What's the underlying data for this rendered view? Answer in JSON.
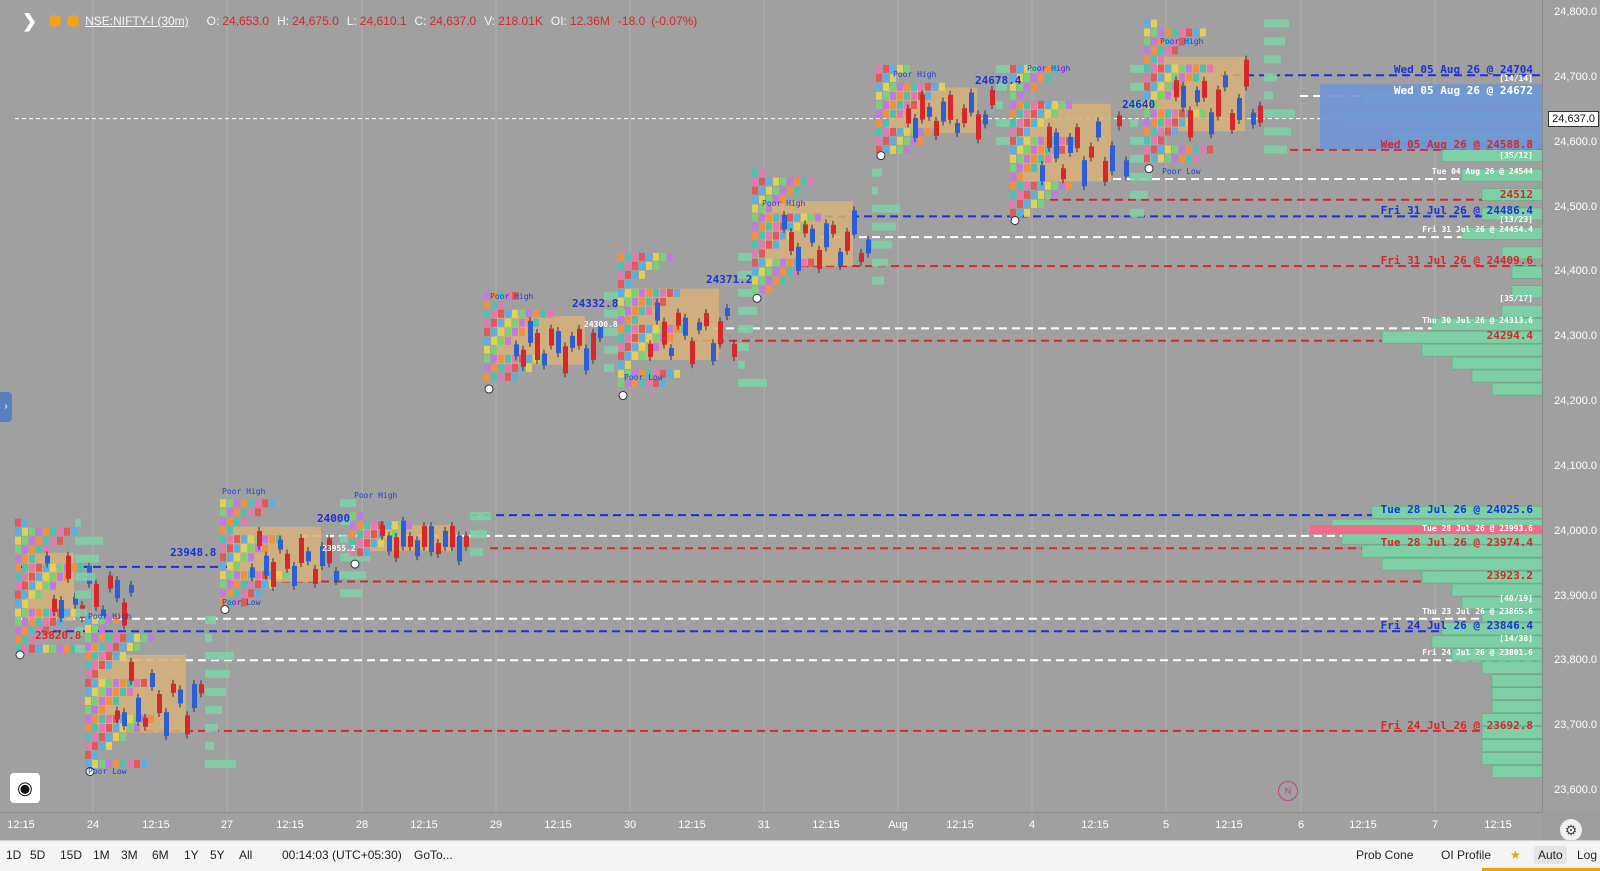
{
  "legend": {
    "symbol": "NSE:NIFTY-I (30m)",
    "open_label": "O:",
    "open": "24,653.0",
    "high_label": "H:",
    "high": "24,675.0",
    "low_label": "L:",
    "low": "24,610.1",
    "close_label": "C:",
    "close": "24,637.0",
    "volume_label": "V:",
    "volume": "218.01K",
    "oi_label": "OI:",
    "oi": "12.36M",
    "change": "-18.0",
    "change_pct": "(-0.07%)"
  },
  "current_price": "24,637.0",
  "price_ticks": [
    "24,800.0",
    "24,700.0",
    "24,600.0",
    "24,500.0",
    "24,400.0",
    "24,300.0",
    "24,200.0",
    "24,100.0",
    "24,000.0",
    "23,900.0",
    "23,800.0",
    "23,700.0",
    "23,600.0"
  ],
  "time_ticks": [
    "12:15",
    "24",
    "12:15",
    "27",
    "12:15",
    "28",
    "12:15",
    "29",
    "12:15",
    "30",
    "12:15",
    "31",
    "12:15",
    "Aug",
    "12:15",
    "4",
    "12:15",
    "5",
    "12:15",
    "6",
    "12:15",
    "7",
    "12:15"
  ],
  "levels": [
    {
      "text": "Wed 05 Aug 26 @ 24704",
      "color": "#1a33d6",
      "style": "blue"
    },
    {
      "text": "[14/14]",
      "color": "#ffffff",
      "style": "small"
    },
    {
      "text": "Wed 05 Aug 26 @ 24672",
      "color": "#ffffff",
      "style": "white"
    },
    {
      "text": "Wed 05 Aug 26 @ 24588.8",
      "color": "#d62828",
      "style": "red"
    },
    {
      "text": "[35/12]",
      "color": "#ffffff",
      "style": "small"
    },
    {
      "text": "Tue 04 Aug 26 @ 24544",
      "color": "#ffffff",
      "style": "small"
    },
    {
      "text": "24512",
      "color": "#d62828",
      "style": "red"
    },
    {
      "text": "Fri 31 Jul 26 @ 24486.4",
      "color": "#1a33d6",
      "style": "blue"
    },
    {
      "text": "[13/23]",
      "color": "#ffffff",
      "style": "small"
    },
    {
      "text": "Fri 31 Jul 26 @ 24454.4",
      "color": "#ffffff",
      "style": "small"
    },
    {
      "text": "Fri 31 Jul 26 @ 24409.6",
      "color": "#d62828",
      "style": "red"
    },
    {
      "text": "[35/17]",
      "color": "#ffffff",
      "style": "small"
    },
    {
      "text": "Thu 30 Jul 26 @ 24313.6",
      "color": "#ffffff",
      "style": "small"
    },
    {
      "text": "24294.4",
      "color": "#d62828",
      "style": "red"
    },
    {
      "text": "Tue 28 Jul 26 @ 24025.6",
      "color": "#1a33d6",
      "style": "blue"
    },
    {
      "text": "Tue 28 Jul 26 @ 23993.6",
      "color": "#ffffff",
      "style": "small"
    },
    {
      "text": "Tue 28 Jul 26 @ 23974.4",
      "color": "#d62828",
      "style": "red"
    },
    {
      "text": "23923.2",
      "color": "#d62828",
      "style": "red"
    },
    {
      "text": "[40/19]",
      "color": "#ffffff",
      "style": "small"
    },
    {
      "text": "Thu 23 Jul 26 @ 23865.6",
      "color": "#ffffff",
      "style": "small"
    },
    {
      "text": "Fri 24 Jul 26 @ 23846.4",
      "color": "#1a33d6",
      "style": "blue"
    },
    {
      "text": "[14/38]",
      "color": "#ffffff",
      "style": "small"
    },
    {
      "text": "Fri 24 Jul 26 @ 23801.6",
      "color": "#ffffff",
      "style": "small"
    },
    {
      "text": "Fri 24 Jul 26 @ 23692.8",
      "color": "#d62828",
      "style": "red"
    }
  ],
  "annotations": {
    "poor_high": "Poor High",
    "poor_low": "Poor Low",
    "values": [
      "23948.8",
      "24000",
      "23955.2",
      "23820.8",
      "24332.8",
      "24300.8",
      "24371.2",
      "24678.4",
      "24640"
    ]
  },
  "bottom_bar": {
    "ranges": [
      "1D",
      "5D",
      "15D",
      "1M",
      "3M",
      "6M",
      "1Y",
      "5Y",
      "All"
    ],
    "clock": "00:14:03 (UTC+05:30)",
    "goto": "GoTo...",
    "prob_cone": "Prob Cone",
    "oi_profile": "OI Profile",
    "star": "★",
    "auto": "Auto",
    "log": "Log"
  },
  "icons": {
    "expand": "chevron-right-icon",
    "settings": "gear-icon",
    "logo": "app-logo-icon",
    "marker": "N"
  },
  "colors": {
    "bg": "#a0a0a0",
    "blue": "#1a33d6",
    "red": "#d62828",
    "white": "#ffffff",
    "profile": "#7fcfa6",
    "value_area": "#d7b07a"
  }
}
